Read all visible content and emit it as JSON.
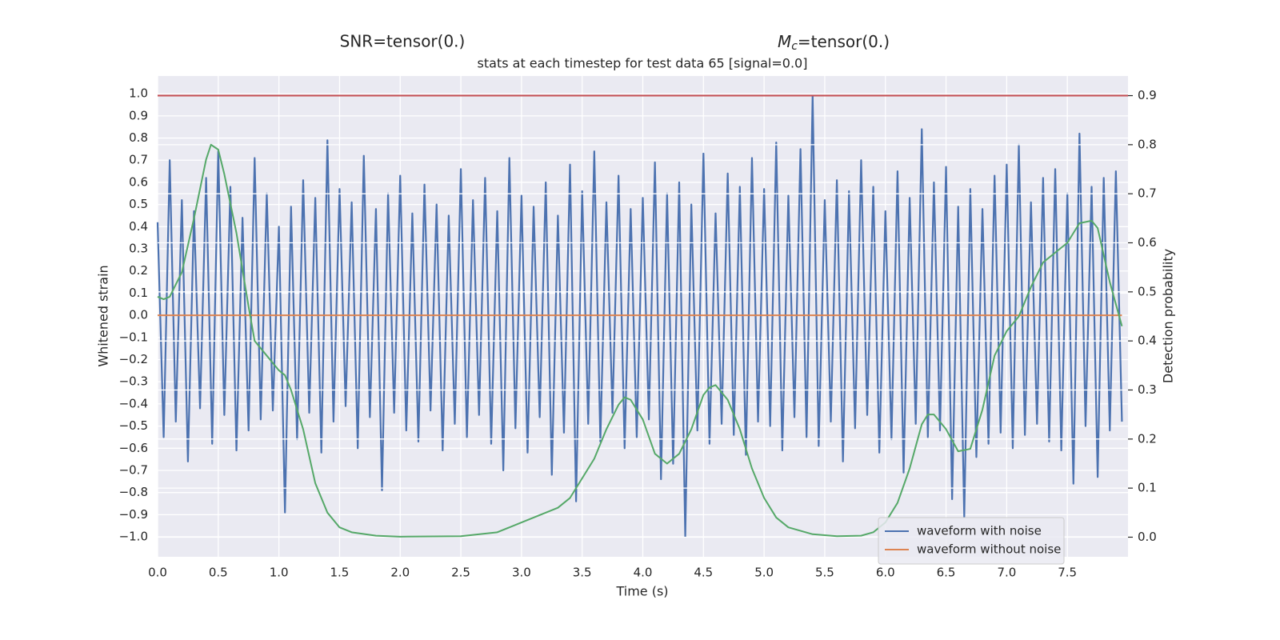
{
  "chart_data": {
    "type": "line",
    "annotations": [
      {
        "text": "SNR=tensor(0.)"
      },
      {
        "symbol": "M",
        "subscript": "c",
        "text": "=tensor(0.)"
      }
    ],
    "title": "stats at each timestep for test data 65 [signal=0.0]",
    "xlabel": "Time (s)",
    "ylabel": "Whitened strain",
    "y2label": "Detection probability",
    "grid": true,
    "background": "#eaeaf2",
    "legend": "lower right",
    "xlim": [
      0,
      8.0
    ],
    "ylim": [
      -1.09,
      1.08
    ],
    "y2lim": [
      -0.04,
      0.94
    ],
    "xticks": [
      {
        "value": 0,
        "label": "0.0"
      },
      0.5,
      {
        "value": 1,
        "label": "1.0"
      },
      1.5,
      {
        "value": 2,
        "label": "2.0"
      },
      2.5,
      {
        "value": 3,
        "label": "3.0"
      },
      3.5,
      {
        "value": 4,
        "label": "4.0"
      },
      4.5,
      {
        "value": 5,
        "label": "5.0"
      },
      5.5,
      {
        "value": 6,
        "label": "6.0"
      },
      6.5,
      {
        "value": 7,
        "label": "7.0"
      },
      7.5
    ],
    "yticks": [
      {
        "value": -1,
        "label": "−1.0"
      },
      {
        "value": -0.9,
        "label": "−0.9"
      },
      {
        "value": -0.8,
        "label": "−0.8"
      },
      {
        "value": -0.7,
        "label": "−0.7"
      },
      {
        "value": -0.6,
        "label": "−0.6"
      },
      {
        "value": -0.5,
        "label": "−0.5"
      },
      {
        "value": -0.4,
        "label": "−0.4"
      },
      {
        "value": -0.3,
        "label": "−0.3"
      },
      {
        "value": -0.2,
        "label": "−0.2"
      },
      {
        "value": -0.1,
        "label": "−0.1"
      },
      {
        "value": 0,
        "label": "0.0"
      },
      0.1,
      0.2,
      0.3,
      0.4,
      0.5,
      0.6,
      0.7,
      0.8,
      0.9,
      {
        "value": 1,
        "label": "1.0"
      }
    ],
    "y2ticks": [
      {
        "value": 0,
        "label": "0.0"
      },
      0.1,
      0.2,
      0.3,
      0.4,
      0.5,
      0.6,
      0.7,
      0.8,
      0.9
    ],
    "hlines": [
      {
        "value": 0.9,
        "axis": "y2",
        "color": "#c44e52"
      }
    ],
    "series": [
      {
        "name": "waveform with noise",
        "color": "#4c72b0",
        "x": [
          0,
          0.05,
          0.1,
          0.15,
          0.2,
          0.25,
          0.3,
          0.35,
          0.4,
          0.45,
          0.5,
          0.55,
          0.6,
          0.65,
          0.7,
          0.75,
          0.8,
          0.85,
          0.9,
          0.95,
          1,
          1.05,
          1.1,
          1.15,
          1.2,
          1.25,
          1.3,
          1.35,
          1.4,
          1.45,
          1.5,
          1.55,
          1.6,
          1.65,
          1.7,
          1.75,
          1.8,
          1.85,
          1.9,
          1.95,
          2,
          2.05,
          2.1,
          2.15,
          2.2,
          2.25,
          2.3,
          2.35,
          2.4,
          2.45,
          2.5,
          2.55,
          2.6,
          2.65,
          2.7,
          2.75,
          2.8,
          2.85,
          2.9,
          2.95,
          3,
          3.05,
          3.1,
          3.15,
          3.2,
          3.25,
          3.3,
          3.35,
          3.4,
          3.45,
          3.5,
          3.55,
          3.6,
          3.65,
          3.7,
          3.75,
          3.8,
          3.85,
          3.9,
          3.95,
          4,
          4.05,
          4.1,
          4.15,
          4.2,
          4.25,
          4.3,
          4.35,
          4.4,
          4.45,
          4.5,
          4.55,
          4.6,
          4.65,
          4.7,
          4.75,
          4.8,
          4.85,
          4.9,
          4.95,
          5,
          5.05,
          5.1,
          5.15,
          5.2,
          5.25,
          5.3,
          5.35,
          5.4,
          5.45,
          5.5,
          5.55,
          5.6,
          5.65,
          5.7,
          5.75,
          5.8,
          5.85,
          5.9,
          5.95,
          6,
          6.05,
          6.1,
          6.15,
          6.2,
          6.25,
          6.3,
          6.35,
          6.4,
          6.45,
          6.5,
          6.55,
          6.6,
          6.65,
          6.7,
          6.75,
          6.8,
          6.85,
          6.9,
          6.95,
          7,
          7.05,
          7.1,
          7.15,
          7.2,
          7.25,
          7.3,
          7.35,
          7.4,
          7.45,
          7.5,
          7.55,
          7.6,
          7.65,
          7.7,
          7.75,
          7.8,
          7.85,
          7.9,
          7.95
        ],
        "values": [
          0.42,
          -0.55,
          0.7,
          -0.48,
          0.52,
          -0.66,
          0.47,
          -0.42,
          0.62,
          -0.58,
          0.74,
          -0.45,
          0.58,
          -0.61,
          0.44,
          -0.52,
          0.71,
          -0.47,
          0.55,
          -0.43,
          0.4,
          -0.89,
          0.49,
          -0.56,
          0.61,
          -0.44,
          0.53,
          -0.62,
          0.79,
          -0.48,
          0.57,
          -0.41,
          0.51,
          -0.6,
          0.72,
          -0.46,
          0.48,
          -0.79,
          0.55,
          -0.44,
          0.63,
          -0.52,
          0.46,
          -0.57,
          0.59,
          -0.43,
          0.5,
          -0.61,
          0.45,
          -0.49,
          0.66,
          -0.55,
          0.52,
          -0.45,
          0.62,
          -0.58,
          0.47,
          -0.7,
          0.71,
          -0.51,
          0.54,
          -0.62,
          0.49,
          -0.46,
          0.6,
          -0.72,
          0.45,
          -0.53,
          0.68,
          -0.84,
          0.56,
          -0.49,
          0.74,
          -0.57,
          0.51,
          -0.44,
          0.63,
          -0.6,
          0.48,
          -0.55,
          0.53,
          -0.47,
          0.69,
          -0.74,
          0.55,
          -0.67,
          0.6,
          -1.0,
          0.5,
          -0.52,
          0.73,
          -0.58,
          0.46,
          -0.49,
          0.64,
          -0.54,
          0.58,
          -0.63,
          0.71,
          -0.48,
          0.57,
          -0.5,
          0.78,
          -0.61,
          0.54,
          -0.46,
          0.75,
          -0.55,
          0.99,
          -0.59,
          0.52,
          -0.48,
          0.61,
          -0.66,
          0.56,
          -0.51,
          0.7,
          -0.45,
          0.58,
          -0.62,
          0.47,
          -0.56,
          0.65,
          -0.71,
          0.53,
          -0.49,
          0.84,
          -0.55,
          0.6,
          -0.52,
          0.67,
          -0.83,
          0.49,
          -0.91,
          0.57,
          -0.64,
          0.48,
          -0.58,
          0.63,
          -0.53,
          0.68,
          -0.6,
          0.77,
          -0.54,
          0.51,
          -0.49,
          0.62,
          -0.57,
          0.66,
          -0.61,
          0.55,
          -0.76,
          0.82,
          -0.5,
          0.58,
          -0.73,
          0.62,
          -0.52,
          0.65,
          -0.48
        ]
      },
      {
        "name": "waveform without noise",
        "color": "#dd8452",
        "x": [
          0,
          7.95
        ],
        "values": [
          0,
          0
        ]
      },
      {
        "color": "#55a868",
        "axis": "y2",
        "x": [
          0,
          0.05,
          0.1,
          0.2,
          0.3,
          0.4,
          0.44,
          0.5,
          0.55,
          0.65,
          0.75,
          0.8,
          0.9,
          1.0,
          1.05,
          1.1,
          1.2,
          1.3,
          1.4,
          1.5,
          1.6,
          1.8,
          2.0,
          2.5,
          2.8,
          3.0,
          3.2,
          3.3,
          3.4,
          3.5,
          3.6,
          3.7,
          3.8,
          3.85,
          3.9,
          4.0,
          4.1,
          4.2,
          4.3,
          4.4,
          4.5,
          4.55,
          4.6,
          4.7,
          4.8,
          4.9,
          5.0,
          5.1,
          5.2,
          5.4,
          5.6,
          5.8,
          5.9,
          6.0,
          6.1,
          6.2,
          6.3,
          6.35,
          6.4,
          6.5,
          6.6,
          6.7,
          6.8,
          6.9,
          7.0,
          7.1,
          7.2,
          7.3,
          7.4,
          7.5,
          7.6,
          7.7,
          7.75,
          7.85,
          7.95
        ],
        "values": [
          0.49,
          0.485,
          0.49,
          0.54,
          0.65,
          0.77,
          0.8,
          0.79,
          0.74,
          0.62,
          0.47,
          0.4,
          0.37,
          0.34,
          0.33,
          0.3,
          0.22,
          0.11,
          0.05,
          0.02,
          0.01,
          0.003,
          0.001,
          0.002,
          0.01,
          0.03,
          0.05,
          0.06,
          0.08,
          0.12,
          0.16,
          0.22,
          0.27,
          0.285,
          0.28,
          0.24,
          0.17,
          0.15,
          0.17,
          0.22,
          0.29,
          0.305,
          0.31,
          0.28,
          0.22,
          0.14,
          0.08,
          0.04,
          0.02,
          0.006,
          0.002,
          0.003,
          0.01,
          0.03,
          0.07,
          0.14,
          0.23,
          0.25,
          0.25,
          0.22,
          0.175,
          0.18,
          0.26,
          0.37,
          0.42,
          0.45,
          0.51,
          0.56,
          0.58,
          0.6,
          0.64,
          0.645,
          0.63,
          0.52,
          0.43
        ]
      }
    ]
  }
}
